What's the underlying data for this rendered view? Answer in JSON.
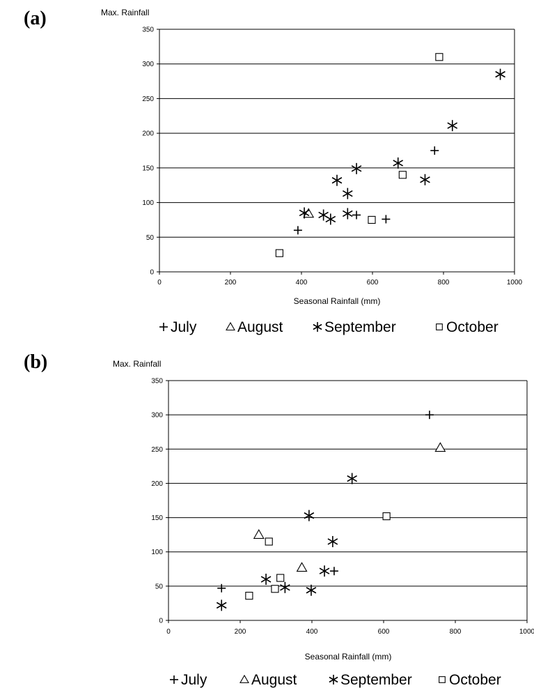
{
  "chart_data": [
    {
      "type": "scatter",
      "panel_label": "(a)",
      "ylabel": "Max. Rainfall",
      "xlabel": "Seasonal Rainfall (mm)",
      "xlim": [
        0,
        1000
      ],
      "ylim": [
        0,
        350
      ],
      "xticks": [
        "0",
        "200",
        "400",
        "600",
        "800",
        "1000"
      ],
      "yticks": [
        "0",
        "50",
        "100",
        "150",
        "200",
        "250",
        "300",
        "350"
      ],
      "grid": "horizontal",
      "legend_position": "bottom",
      "series": [
        {
          "name": "July",
          "marker": "plus",
          "points": [
            [
              390,
              60
            ],
            [
              555,
              82
            ],
            [
              638,
              76
            ],
            [
              775,
              175
            ]
          ]
        },
        {
          "name": "August",
          "marker": "triangle",
          "points": [
            [
              420,
              84
            ]
          ]
        },
        {
          "name": "September",
          "marker": "asterisk",
          "points": [
            [
              408,
              85
            ],
            [
              462,
              82
            ],
            [
              482,
              76
            ],
            [
              500,
              132
            ],
            [
              530,
              84
            ],
            [
              530,
              113
            ],
            [
              555,
              149
            ],
            [
              672,
              157
            ],
            [
              748,
              133
            ],
            [
              825,
              211
            ],
            [
              960,
              285
            ]
          ]
        },
        {
          "name": "October",
          "marker": "square",
          "points": [
            [
              338,
              27
            ],
            [
              598,
              75
            ],
            [
              685,
              140
            ],
            [
              788,
              310
            ]
          ]
        }
      ]
    },
    {
      "type": "scatter",
      "panel_label": "(b)",
      "ylabel": "Max. Rainfall",
      "xlabel": "Seasonal Rainfall (mm)",
      "xlim": [
        0,
        1000
      ],
      "ylim": [
        0,
        350
      ],
      "xticks": [
        "0",
        "200",
        "400",
        "600",
        "800",
        "1000"
      ],
      "yticks": [
        "0",
        "50",
        "100",
        "150",
        "200",
        "250",
        "300",
        "350"
      ],
      "grid": "horizontal",
      "legend_position": "bottom",
      "series": [
        {
          "name": "July",
          "marker": "plus",
          "points": [
            [
              148,
              47
            ],
            [
              462,
              72
            ],
            [
              728,
              300
            ]
          ]
        },
        {
          "name": "August",
          "marker": "triangle",
          "points": [
            [
              252,
              125
            ],
            [
              372,
              77
            ],
            [
              758,
              252
            ]
          ]
        },
        {
          "name": "September",
          "marker": "asterisk",
          "points": [
            [
              148,
              22
            ],
            [
              272,
              60
            ],
            [
              325,
              48
            ],
            [
              392,
              153
            ],
            [
              398,
              44
            ],
            [
              435,
              72
            ],
            [
              458,
              115
            ],
            [
              512,
              207
            ]
          ]
        },
        {
          "name": "October",
          "marker": "square",
          "points": [
            [
              225,
              36
            ],
            [
              280,
              115
            ],
            [
              297,
              46
            ],
            [
              312,
              62
            ],
            [
              608,
              152
            ]
          ]
        }
      ]
    }
  ],
  "legend_symbols": {
    "plus": "+",
    "triangle": "△",
    "asterisk": "∗",
    "square": "□"
  }
}
